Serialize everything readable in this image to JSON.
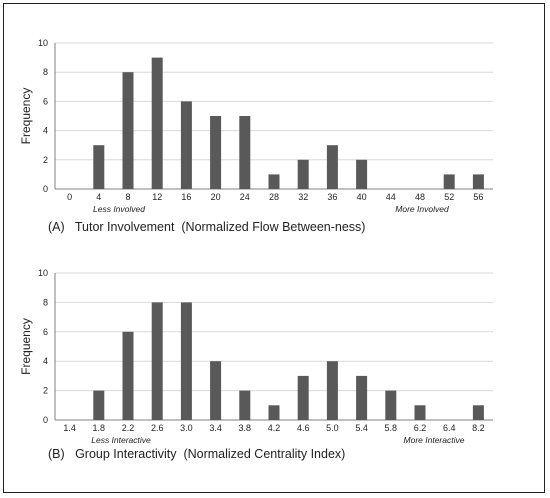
{
  "colors": {
    "bar": "#595959",
    "grid": "#d9d9d9",
    "axis": "#808080",
    "text": "#222222"
  },
  "chart_data": [
    {
      "type": "bar",
      "categories": [
        "0",
        "4",
        "8",
        "12",
        "16",
        "20",
        "24",
        "28",
        "32",
        "36",
        "40",
        "44",
        "48",
        "52",
        "56"
      ],
      "values": [
        0,
        3,
        8,
        9,
        6,
        5,
        5,
        1,
        2,
        3,
        2,
        0,
        0,
        1,
        1
      ],
      "ylabel": "Frequency",
      "ylim": [
        0,
        10
      ],
      "yticks": [
        0,
        2,
        4,
        6,
        8,
        10
      ],
      "grid": true,
      "annotations": {
        "left": "Less Involved",
        "right": "More Involved"
      },
      "caption": "(A)   Tutor Involvement  (Normalized Flow Between-ness)"
    },
    {
      "type": "bar",
      "categories": [
        "1.4",
        "1.8",
        "2.2",
        "2.6",
        "3.0",
        "3.4",
        "3.8",
        "4.2",
        "4.6",
        "5.0",
        "5.4",
        "5.8",
        "6.2",
        "6.4",
        "8.2"
      ],
      "values": [
        0,
        2,
        6,
        8,
        8,
        4,
        2,
        1,
        3,
        4,
        3,
        2,
        1,
        0,
        1
      ],
      "ylabel": "Frequency",
      "ylim": [
        0,
        10
      ],
      "yticks": [
        0,
        2,
        4,
        6,
        8,
        10
      ],
      "grid": true,
      "annotations": {
        "left": "Less Interactive",
        "right": "More Interactive"
      },
      "caption": "(B)   Group Interactivity  (Normalized Centrality Index)"
    }
  ]
}
